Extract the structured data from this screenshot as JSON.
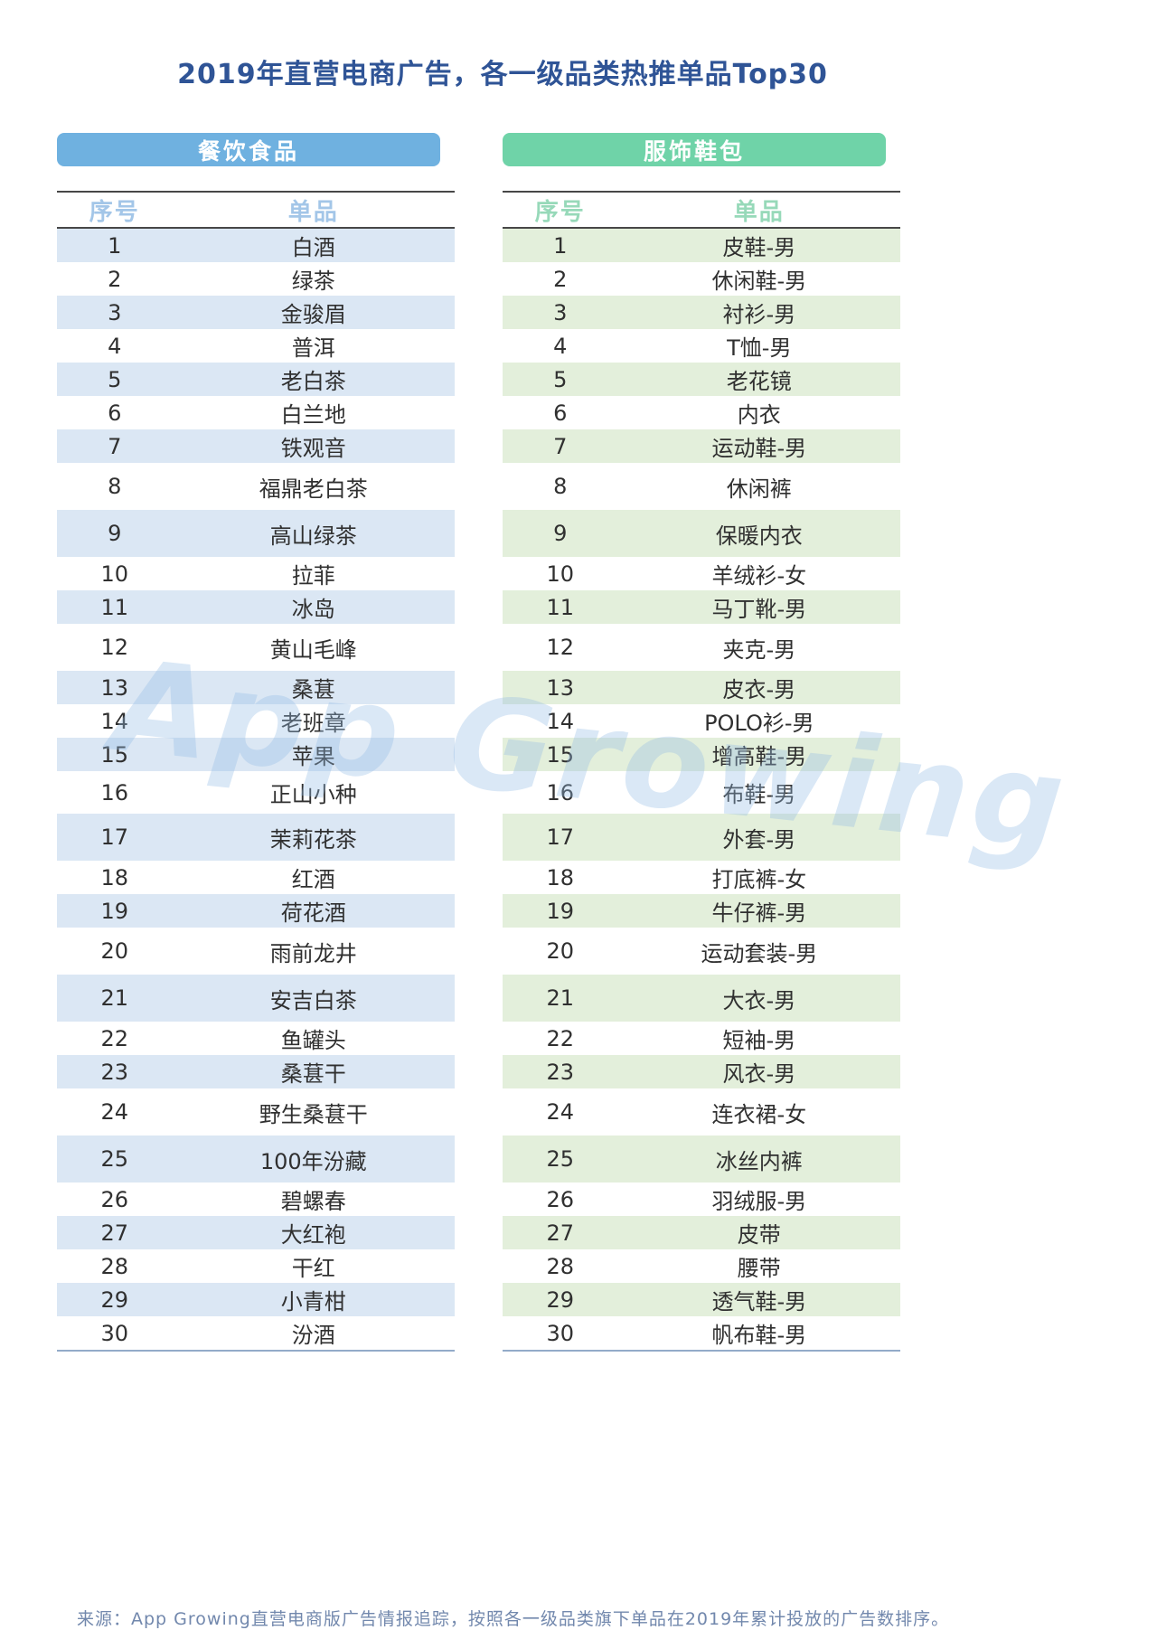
{
  "title": "2019年直营电商广告，各一级品类热推单品Top30",
  "watermark": "App Growing",
  "source_note": "来源：App Growing直营电商版广告情报追踪，按照各一级品类旗下单品在2019年累计投放的广告数排序。",
  "chart_data": [
    {
      "type": "table",
      "category": "餐饮食品",
      "accent": "#6fb1e0",
      "header_text_color": "#a3c6e8",
      "stripe_color": "#dbe7f4",
      "columns": {
        "rank": "序号",
        "item": "单品"
      },
      "rows": [
        {
          "rank": "1",
          "item": "白酒"
        },
        {
          "rank": "2",
          "item": "绿茶"
        },
        {
          "rank": "3",
          "item": "金骏眉"
        },
        {
          "rank": "4",
          "item": "普洱"
        },
        {
          "rank": "5",
          "item": "老白茶"
        },
        {
          "rank": "6",
          "item": "白兰地"
        },
        {
          "rank": "7",
          "item": "铁观音"
        },
        {
          "rank": "8",
          "item": "福鼎老白茶"
        },
        {
          "rank": "9",
          "item": "高山绿茶"
        },
        {
          "rank": "10",
          "item": "拉菲"
        },
        {
          "rank": "11",
          "item": "冰岛"
        },
        {
          "rank": "12",
          "item": "黄山毛峰"
        },
        {
          "rank": "13",
          "item": "桑葚"
        },
        {
          "rank": "14",
          "item": "老班章"
        },
        {
          "rank": "15",
          "item": "苹果"
        },
        {
          "rank": "16",
          "item": "正山小种"
        },
        {
          "rank": "17",
          "item": "茉莉花茶"
        },
        {
          "rank": "18",
          "item": "红酒"
        },
        {
          "rank": "19",
          "item": "荷花酒"
        },
        {
          "rank": "20",
          "item": "雨前龙井"
        },
        {
          "rank": "21",
          "item": "安吉白茶"
        },
        {
          "rank": "22",
          "item": "鱼罐头"
        },
        {
          "rank": "23",
          "item": "桑葚干"
        },
        {
          "rank": "24",
          "item": "野生桑葚干"
        },
        {
          "rank": "25",
          "item": "100年汾藏"
        },
        {
          "rank": "26",
          "item": "碧螺春"
        },
        {
          "rank": "27",
          "item": "大红袍"
        },
        {
          "rank": "28",
          "item": "干红"
        },
        {
          "rank": "29",
          "item": "小青柑"
        },
        {
          "rank": "30",
          "item": "汾酒"
        }
      ]
    },
    {
      "type": "table",
      "category": "服饰鞋包",
      "accent": "#6fd3a8",
      "header_text_color": "#97d9b9",
      "stripe_color": "#e3efdb",
      "columns": {
        "rank": "序号",
        "item": "单品"
      },
      "rows": [
        {
          "rank": "1",
          "item": "皮鞋-男"
        },
        {
          "rank": "2",
          "item": "休闲鞋-男"
        },
        {
          "rank": "3",
          "item": "衬衫-男"
        },
        {
          "rank": "4",
          "item": "T恤-男"
        },
        {
          "rank": "5",
          "item": "老花镜"
        },
        {
          "rank": "6",
          "item": "内衣"
        },
        {
          "rank": "7",
          "item": "运动鞋-男"
        },
        {
          "rank": "8",
          "item": "休闲裤"
        },
        {
          "rank": "9",
          "item": "保暖内衣"
        },
        {
          "rank": "10",
          "item": "羊绒衫-女"
        },
        {
          "rank": "11",
          "item": "马丁靴-男"
        },
        {
          "rank": "12",
          "item": "夹克-男"
        },
        {
          "rank": "13",
          "item": "皮衣-男"
        },
        {
          "rank": "14",
          "item": "POLO衫-男"
        },
        {
          "rank": "15",
          "item": "增高鞋-男"
        },
        {
          "rank": "16",
          "item": "布鞋-男"
        },
        {
          "rank": "17",
          "item": "外套-男"
        },
        {
          "rank": "18",
          "item": "打底裤-女"
        },
        {
          "rank": "19",
          "item": "牛仔裤-男"
        },
        {
          "rank": "20",
          "item": "运动套装-男"
        },
        {
          "rank": "21",
          "item": "大衣-男"
        },
        {
          "rank": "22",
          "item": "短袖-男"
        },
        {
          "rank": "23",
          "item": "风衣-男"
        },
        {
          "rank": "24",
          "item": "连衣裙-女"
        },
        {
          "rank": "25",
          "item": "冰丝内裤"
        },
        {
          "rank": "26",
          "item": "羽绒服-男"
        },
        {
          "rank": "27",
          "item": "皮带"
        },
        {
          "rank": "28",
          "item": "腰带"
        },
        {
          "rank": "29",
          "item": "透气鞋-男"
        },
        {
          "rank": "30",
          "item": "帆布鞋-男"
        }
      ]
    }
  ]
}
